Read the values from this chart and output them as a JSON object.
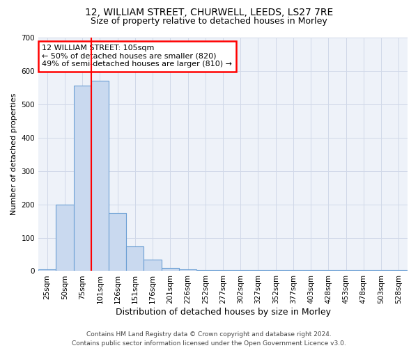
{
  "title1": "12, WILLIAM STREET, CHURWELL, LEEDS, LS27 7RE",
  "title2": "Size of property relative to detached houses in Morley",
  "xlabel": "Distribution of detached houses by size in Morley",
  "ylabel": "Number of detached properties",
  "bar_labels": [
    "25sqm",
    "50sqm",
    "75sqm",
    "101sqm",
    "126sqm",
    "151sqm",
    "176sqm",
    "201sqm",
    "226sqm",
    "252sqm",
    "277sqm",
    "302sqm",
    "327sqm",
    "352sqm",
    "377sqm",
    "403sqm",
    "428sqm",
    "453sqm",
    "478sqm",
    "503sqm",
    "528sqm"
  ],
  "bar_values": [
    5,
    200,
    555,
    570,
    175,
    75,
    35,
    10,
    5,
    3,
    3,
    2,
    3,
    2,
    2,
    2,
    2,
    2,
    2,
    2,
    2
  ],
  "bar_color": "#c9d9ef",
  "bar_edge_color": "#6b9fd4",
  "annotation_line1": "12 WILLIAM STREET: 105sqm",
  "annotation_line2": "← 50% of detached houses are smaller (820)",
  "annotation_line3": "49% of semi-detached houses are larger (810) →",
  "annotation_box_color": "white",
  "annotation_box_edge": "red",
  "red_line_bar_index": 2.5,
  "ylim": [
    0,
    700
  ],
  "yticks": [
    0,
    100,
    200,
    300,
    400,
    500,
    600,
    700
  ],
  "grid_color": "#d0d8e8",
  "background_color": "#eef2f9",
  "footer_line1": "Contains HM Land Registry data © Crown copyright and database right 2024.",
  "footer_line2": "Contains public sector information licensed under the Open Government Licence v3.0.",
  "title1_fontsize": 10,
  "title2_fontsize": 9,
  "xlabel_fontsize": 9,
  "ylabel_fontsize": 8,
  "tick_fontsize": 7.5,
  "annotation_fontsize": 8,
  "footer_fontsize": 6.5
}
